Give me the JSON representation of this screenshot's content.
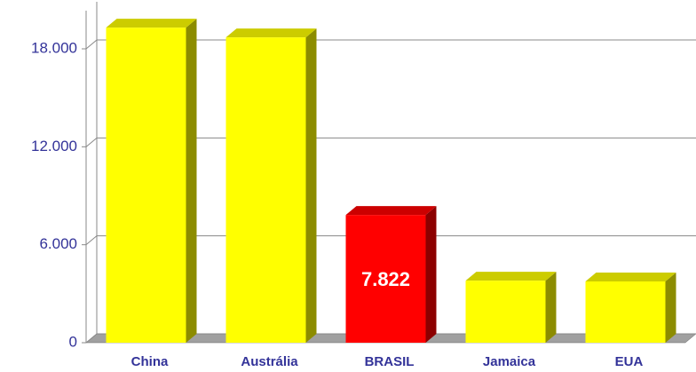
{
  "chart_data": {
    "type": "bar3d",
    "categories": [
      "China",
      "Austrália",
      "BRASIL",
      "Jamaica",
      "EUA"
    ],
    "values": [
      19300,
      18700,
      7822,
      3800,
      3750
    ],
    "value_labels": [
      null,
      null,
      "7.822",
      null,
      null
    ],
    "colors": [
      "#ffff00",
      "#ffff00",
      "#ff0000",
      "#ffff00",
      "#ffff00"
    ],
    "ylim": [
      0,
      18000
    ],
    "yticks": [
      0,
      {
        "value": 6000,
        "label": "6.000"
      },
      {
        "value": 12000,
        "label": "12.000"
      },
      {
        "value": 18000,
        "label": "18.000"
      }
    ],
    "grid": true
  }
}
